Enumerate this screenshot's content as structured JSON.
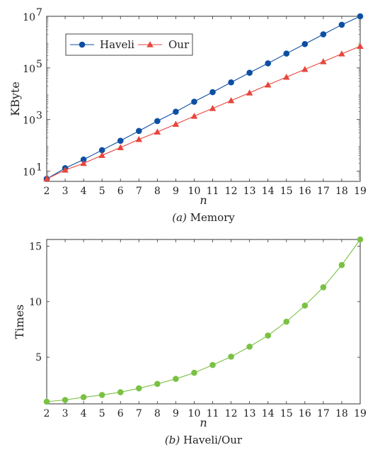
{
  "chart_data": [
    {
      "type": "line",
      "title": "",
      "xlabel": "n",
      "ylabel": "KByte",
      "yscale": "log",
      "x": [
        2,
        3,
        4,
        5,
        6,
        7,
        8,
        9,
        10,
        11,
        12,
        13,
        14,
        15,
        16,
        17,
        18,
        19
      ],
      "xlim": [
        2,
        19
      ],
      "ylim": [
        4,
        10000000
      ],
      "y_ticks": [
        {
          "base": "10",
          "exp": "1"
        },
        {
          "base": "10",
          "exp": "3"
        },
        {
          "base": "10",
          "exp": "5"
        },
        {
          "base": "10",
          "exp": "7"
        }
      ],
      "legend_position": "top-left",
      "grid": false,
      "caption": {
        "label": "(a)",
        "text": "Memory"
      },
      "series": [
        {
          "name": "Haveli",
          "color": "#0d4fa3",
          "marker": "circle",
          "values": [
            5,
            13,
            28,
            65,
            150,
            360,
            870,
            2000,
            4900,
            11500,
            27500,
            65000,
            150000,
            360000,
            840000,
            2000000,
            4700000,
            10000000
          ]
        },
        {
          "name": "Our",
          "color": "#e8453c",
          "marker": "triangle",
          "values": [
            5,
            11,
            20,
            41,
            82,
            170,
            330,
            660,
            1350,
            2700,
            5400,
            10800,
            22000,
            44000,
            88000,
            175000,
            350000,
            690000
          ]
        }
      ]
    },
    {
      "type": "line",
      "title": "",
      "xlabel": "n",
      "ylabel": "Times",
      "x": [
        2,
        3,
        4,
        5,
        6,
        7,
        8,
        9,
        10,
        11,
        12,
        13,
        14,
        15,
        16,
        17,
        18,
        19
      ],
      "xlim": [
        2,
        19
      ],
      "ylim": [
        0.8,
        15.6
      ],
      "yticks": [
        5,
        10,
        15
      ],
      "grid": false,
      "caption": {
        "label": "(b)",
        "text": "Haveli/Our"
      },
      "series": [
        {
          "name": "",
          "color": "#7ac143",
          "marker": "circle",
          "values": [
            1.0,
            1.15,
            1.4,
            1.6,
            1.85,
            2.2,
            2.6,
            3.05,
            3.6,
            4.3,
            5.05,
            5.95,
            6.95,
            8.2,
            9.65,
            11.3,
            13.3,
            15.6
          ]
        }
      ]
    }
  ]
}
